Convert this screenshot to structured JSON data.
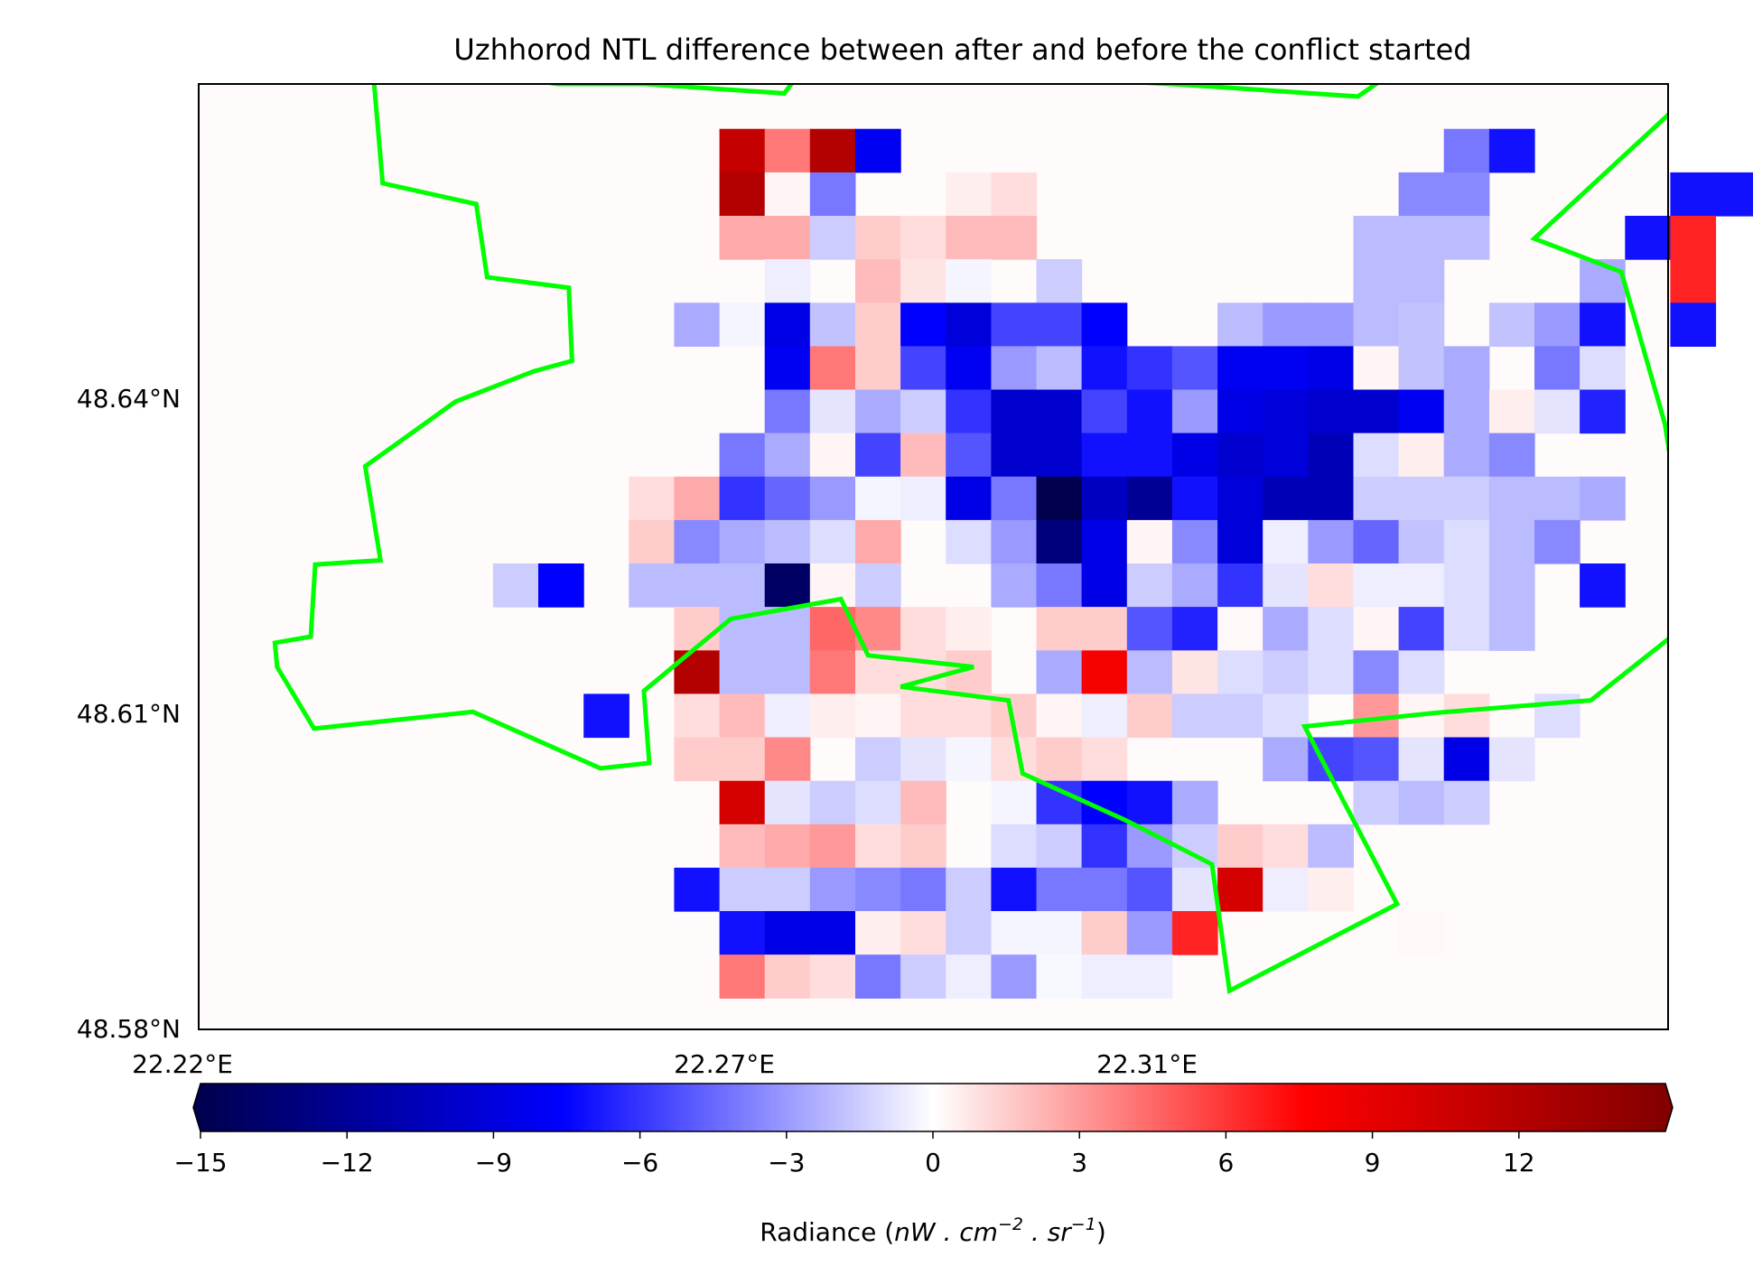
{
  "chart_data": {
    "type": "heatmap",
    "title": "Uzhhorod NTL difference between after and before the conflict started",
    "x_tick_labels": [
      "22.22°E",
      "22.27°E",
      "22.31°E"
    ],
    "x_ticks": [
      22.22,
      22.27,
      22.31
    ],
    "y_tick_labels": [
      "48.64°N",
      "48.61°N",
      "48.58°N"
    ],
    "y_ticks": [
      48.64,
      48.61,
      48.58
    ],
    "xlim": [
      22.22,
      22.355
    ],
    "ylim": [
      48.58,
      48.6705
    ],
    "grid_dx": 0.00416,
    "grid_dy": 0.00416,
    "x_start": 22.2304,
    "y_top": 48.6662,
    "nodata_value": 0,
    "values": [
      [
        0,
        0,
        0,
        0,
        0,
        0,
        0,
        0,
        0,
        11.0,
        4.0,
        12.0,
        -8.0,
        0,
        0,
        0,
        0,
        0,
        0,
        0,
        0,
        0,
        0,
        0,
        0,
        -4.0,
        -7.0,
        0,
        0,
        0,
        0,
        0,
        0
      ],
      [
        0,
        0,
        0,
        0,
        0,
        0,
        0,
        0,
        0,
        12.0,
        0.3,
        -4.0,
        0,
        0,
        0.5,
        1.0,
        0,
        0,
        0,
        0,
        0,
        0,
        0,
        0,
        -3.5,
        -3.5,
        0,
        0,
        0,
        0,
        -7.0,
        -7.0,
        0
      ],
      [
        0,
        0,
        0,
        0,
        0,
        0,
        0,
        0,
        0,
        2.5,
        2.5,
        -1.5,
        1.5,
        1.0,
        2.0,
        2.0,
        0,
        0,
        0,
        0,
        0,
        0,
        0,
        -2.0,
        -2.0,
        -2.0,
        0,
        0,
        0,
        -7.0,
        6.5,
        0,
        0
      ],
      [
        0,
        0,
        0,
        0,
        0,
        0,
        0,
        0,
        0,
        0,
        -0.5,
        0,
        2.0,
        0.8,
        -0.3,
        0,
        -1.5,
        0,
        0,
        0,
        0,
        0,
        0,
        -2.0,
        -2.0,
        0,
        0,
        0,
        -2.5,
        0,
        6.5,
        0,
        0
      ],
      [
        0,
        0,
        0,
        0,
        0,
        0,
        0,
        0,
        -2.5,
        -0.3,
        -8.5,
        -1.8,
        1.5,
        -7.5,
        -9.0,
        -5.5,
        -5.5,
        -7.5,
        0,
        0,
        -2.0,
        -3.0,
        -3.0,
        -2.0,
        -1.8,
        0,
        -1.8,
        -3.0,
        -7.0,
        0,
        -7.0,
        0,
        0
      ],
      [
        0,
        0,
        0,
        0,
        0,
        0,
        0,
        0,
        0,
        0,
        -8.0,
        4.0,
        1.5,
        -5.5,
        -8.0,
        -3.0,
        -2.0,
        -7.0,
        -6.0,
        -5.0,
        -8.0,
        -8.0,
        -8.5,
        0.3,
        -1.8,
        -2.5,
        0,
        -4.0,
        -1.0,
        0,
        0,
        0,
        0
      ],
      [
        0,
        0,
        0,
        0,
        0,
        0,
        0,
        0,
        0,
        0,
        -4.0,
        -0.8,
        -2.5,
        -1.5,
        -6.0,
        -9.5,
        -9.5,
        -5.5,
        -7.0,
        -3.0,
        -8.5,
        -9.0,
        -9.5,
        -9.5,
        -8.0,
        -2.5,
        0.5,
        -0.8,
        -6.5,
        0,
        0,
        0,
        0
      ],
      [
        0,
        0,
        0,
        0,
        0,
        0,
        0,
        0,
        0,
        -4.0,
        -2.5,
        0.3,
        -5.5,
        2.0,
        -5.0,
        -9.5,
        -9.5,
        -7.0,
        -7.0,
        -8.5,
        -9.5,
        -9.0,
        -10.5,
        -1.0,
        0.5,
        -2.5,
        -3.5,
        0,
        0,
        0,
        0,
        0,
        0
      ],
      [
        0,
        0,
        0,
        0,
        0,
        0,
        0,
        1.0,
        2.5,
        -6.0,
        -4.5,
        -3.0,
        -0.3,
        -0.5,
        -8.5,
        -4.0,
        -15.0,
        -10.0,
        -12.0,
        -7.0,
        -9.0,
        -10.5,
        -10.5,
        -1.5,
        -1.5,
        -1.5,
        -2.0,
        -2.0,
        -2.5,
        0,
        0,
        0,
        0
      ],
      [
        0,
        0,
        0,
        0,
        0,
        0,
        0,
        1.5,
        -3.5,
        -2.5,
        -2.0,
        -1.0,
        2.5,
        0,
        -1.0,
        -3.0,
        -13.0,
        -8.5,
        0.3,
        -3.5,
        -9.0,
        -0.5,
        -3.0,
        -4.5,
        -1.8,
        -1.0,
        -2.0,
        -3.5,
        0,
        0,
        0,
        0,
        0
      ],
      [
        0,
        0,
        0,
        0,
        -1.5,
        -7.5,
        0,
        -2.0,
        -2.0,
        -2.0,
        -14.0,
        0.3,
        -1.5,
        0,
        0,
        -2.5,
        -4.0,
        -8.5,
        -1.5,
        -2.5,
        -6.0,
        -0.8,
        1.0,
        -0.5,
        -0.5,
        -1.0,
        -2.0,
        0,
        -7.0,
        0,
        0,
        0,
        0
      ],
      [
        0,
        0,
        0,
        0,
        0,
        0,
        0,
        0,
        1.5,
        -2.0,
        -2.0,
        4.5,
        3.5,
        1.0,
        0.5,
        0,
        1.5,
        1.5,
        -5.0,
        -6.5,
        0.2,
        -2.5,
        -1.0,
        0.3,
        -5.5,
        -1.0,
        -2.0,
        0,
        0,
        0,
        0,
        0,
        0
      ],
      [
        0,
        0,
        0,
        0,
        0,
        0,
        0,
        0,
        12.0,
        -2.0,
        -2.0,
        4.0,
        1.0,
        1.0,
        1.5,
        0,
        -2.5,
        8.0,
        -2.0,
        0.8,
        -1.0,
        -1.5,
        -1.0,
        -3.5,
        -1.0,
        0,
        0,
        0,
        0,
        0,
        0,
        0,
        0
      ],
      [
        0,
        0,
        0,
        0,
        0,
        0,
        -7.0,
        0,
        1.0,
        2.0,
        -0.5,
        0.5,
        0.3,
        1.0,
        1.0,
        1.5,
        0.3,
        -0.5,
        1.5,
        -1.5,
        -1.5,
        -1.0,
        0,
        3.0,
        0.3,
        1.0,
        0,
        -1.0,
        0,
        0,
        0,
        0,
        0
      ],
      [
        0,
        0,
        0,
        0,
        0,
        0,
        0,
        0,
        1.5,
        1.5,
        3.5,
        0,
        -1.5,
        -0.8,
        -0.3,
        1.0,
        1.5,
        1.0,
        0,
        0,
        0,
        -2.5,
        -5.5,
        -5.0,
        -0.8,
        -8.5,
        -0.8,
        0,
        0,
        0,
        0,
        0,
        0
      ],
      [
        0,
        0,
        0,
        0,
        0,
        0,
        0,
        0,
        0,
        10.0,
        -0.8,
        -1.5,
        -1.0,
        2.0,
        0,
        -0.3,
        -6.0,
        -7.5,
        -7.0,
        -2.5,
        0,
        0,
        0,
        -1.5,
        -2.0,
        -1.5,
        0,
        0,
        0,
        0,
        0,
        0,
        0
      ],
      [
        0,
        0,
        0,
        0,
        0,
        0,
        0,
        0,
        0,
        2.0,
        2.5,
        3.0,
        1.0,
        1.5,
        0,
        -1.0,
        -1.5,
        -6.0,
        -3.0,
        -1.5,
        1.5,
        1.0,
        -2.0,
        0,
        0,
        0,
        0,
        0,
        0,
        0,
        0,
        0,
        0
      ],
      [
        0,
        0,
        0,
        0,
        0,
        0,
        0,
        0,
        -7.0,
        -1.5,
        -1.5,
        -3.0,
        -3.5,
        -4.0,
        -1.5,
        -7.0,
        -4.0,
        -4.0,
        -5.0,
        -0.8,
        10.0,
        -0.5,
        0.5,
        0,
        0,
        0,
        0,
        0,
        0,
        0,
        0,
        0,
        0
      ],
      [
        0,
        0,
        0,
        0,
        0,
        0,
        0,
        0,
        0,
        -7.0,
        -8.5,
        -8.5,
        0.5,
        1.0,
        -1.5,
        -0.3,
        -0.3,
        1.5,
        -3.0,
        6.5,
        0,
        0,
        0,
        0,
        0.2,
        0,
        0,
        0,
        0,
        0,
        0,
        0,
        0
      ],
      [
        0,
        0,
        0,
        0,
        0,
        0,
        0,
        0,
        0,
        4.0,
        1.5,
        1.0,
        -4.0,
        -1.5,
        -0.5,
        -3.0,
        -0.2,
        -0.5,
        -0.5,
        0,
        0,
        0,
        0,
        0,
        0,
        0,
        0,
        0,
        0,
        0,
        0,
        0,
        0
      ]
    ],
    "boundary": [
      [
        22.2269,
        48.6731
      ],
      [
        22.236,
        48.672
      ],
      [
        22.2369,
        48.661
      ],
      [
        22.2455,
        48.659
      ],
      [
        22.2465,
        48.652
      ],
      [
        22.254,
        48.651
      ],
      [
        22.2543,
        48.644
      ],
      [
        22.2508,
        48.643
      ],
      [
        22.2436,
        48.6401
      ],
      [
        22.2353,
        48.6339
      ],
      [
        22.2367,
        48.6249
      ],
      [
        22.2307,
        48.6245
      ],
      [
        22.2303,
        48.6176
      ],
      [
        22.227,
        48.617
      ],
      [
        22.2272,
        48.6147
      ],
      [
        22.2306,
        48.6088
      ],
      [
        22.2452,
        48.6104
      ],
      [
        22.2569,
        48.605
      ],
      [
        22.2614,
        48.6055
      ],
      [
        22.2609,
        48.6124
      ],
      [
        22.2689,
        48.6193
      ],
      [
        22.279,
        48.6212
      ],
      [
        22.2815,
        48.6158
      ],
      [
        22.2912,
        48.6147
      ],
      [
        22.2845,
        48.6128
      ],
      [
        22.2944,
        48.6115
      ],
      [
        22.2957,
        48.6045
      ],
      [
        22.3052,
        48.6
      ],
      [
        22.3131,
        48.5958
      ],
      [
        22.3147,
        48.5837
      ],
      [
        22.3301,
        48.592
      ],
      [
        22.3216,
        48.609
      ],
      [
        22.3336,
        48.6103
      ],
      [
        22.3479,
        48.6115
      ],
      [
        22.3575,
        48.6194
      ],
      [
        22.3547,
        48.638
      ],
      [
        22.3507,
        48.6525
      ],
      [
        22.3427,
        48.6557
      ],
      [
        22.356,
        48.6685
      ],
      [
        22.3558,
        48.6732
      ],
      [
        22.3525,
        48.6763
      ],
      [
        22.3385,
        48.678
      ],
      [
        22.3265,
        48.6693
      ],
      [
        22.3111,
        48.6704
      ],
      [
        22.3003,
        48.671
      ],
      [
        22.2927,
        48.6728
      ],
      [
        22.2909,
        48.679
      ],
      [
        22.2881,
        48.68
      ],
      [
        22.2799,
        48.678
      ],
      [
        22.2738,
        48.6696
      ],
      [
        22.261,
        48.6705
      ],
      [
        22.253,
        48.6705
      ],
      [
        22.228,
        48.6741
      ],
      [
        22.2252,
        48.6742
      ],
      [
        22.2269,
        48.6731
      ]
    ],
    "colorbar": {
      "label_text": "Radiance (",
      "label_math": "nW . cm",
      "label_exp1": "−2",
      "label_mid": " . sr",
      "label_exp2": "−1",
      "label_close": ")",
      "ticks": [
        -15,
        -12,
        -9,
        -6,
        -3,
        0,
        3,
        6,
        9,
        12
      ],
      "tick_labels": [
        "−15",
        "−12",
        "−9",
        "−6",
        "−3",
        "0",
        "3",
        "6",
        "9",
        "12"
      ],
      "vmin": -15,
      "vmax": 15,
      "extend": "both",
      "colormap": "seismic",
      "colormap_stops": [
        "#00004c",
        "#0000ff",
        "#ffffff",
        "#ff0000",
        "#800000"
      ]
    },
    "boundary_color": "#00ff00",
    "legend": "none",
    "grid": false
  }
}
